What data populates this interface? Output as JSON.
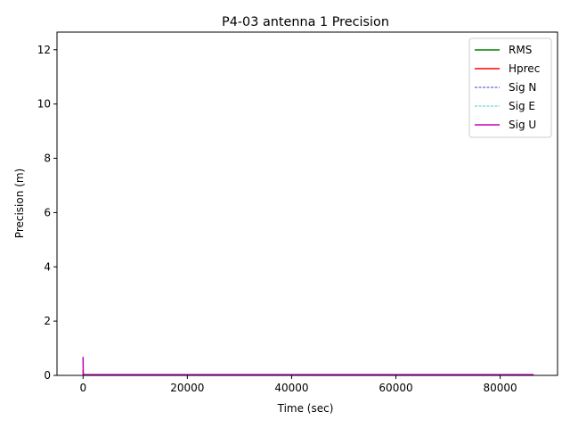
{
  "chart_data": {
    "type": "line",
    "title": "P4-03 antenna 1 Precision",
    "xlabel": "Time (sec)",
    "ylabel": "Precision (m)",
    "xlim": [
      -5000,
      91000
    ],
    "ylim": [
      0,
      12.65
    ],
    "xticks": [
      0,
      20000,
      40000,
      60000,
      80000
    ],
    "yticks": [
      0,
      2,
      4,
      6,
      8,
      10,
      12
    ],
    "grid": false,
    "legend_position": "top-right",
    "series": [
      {
        "name": "RMS",
        "color": "#008000",
        "style": "solid",
        "x": [
          0,
          30,
          60,
          86400
        ],
        "y": [
          0.02,
          0.02,
          0.02,
          0.02
        ]
      },
      {
        "name": "Hprec",
        "color": "#ff0000",
        "style": "solid",
        "x": [
          0,
          30,
          60,
          86400
        ],
        "y": [
          0.2,
          0.04,
          0.02,
          0.02
        ]
      },
      {
        "name": "Sig N",
        "color": "#0000bf",
        "style": "dashed",
        "x": [
          0,
          30,
          60,
          86400
        ],
        "y": [
          0.12,
          0.03,
          0.015,
          0.015
        ]
      },
      {
        "name": "Sig E",
        "color": "#00bfbf",
        "style": "dashed",
        "x": [
          0,
          30,
          60,
          86400
        ],
        "y": [
          0.12,
          0.03,
          0.015,
          0.015
        ]
      },
      {
        "name": "Sig U",
        "color": "#bf00bf",
        "style": "solid",
        "x": [
          0,
          30,
          60,
          86400
        ],
        "y": [
          0.68,
          0.1,
          0.03,
          0.03
        ]
      }
    ]
  }
}
